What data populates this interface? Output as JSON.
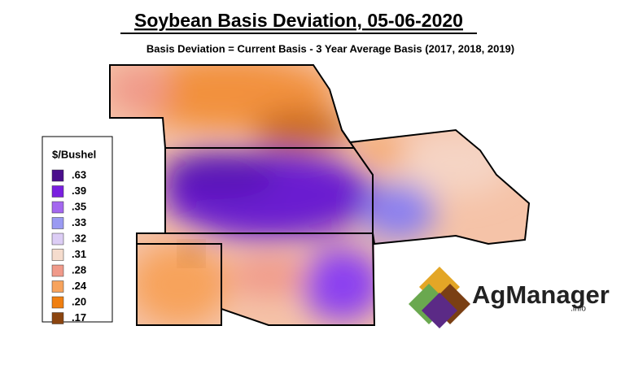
{
  "header": {
    "title": "Soybean Basis Deviation, 05-06-2020",
    "subtitle": "Basis Deviation = Current Basis - 3 Year Average Basis (2017, 2018, 2019)"
  },
  "legend": {
    "title": "$/Bushel",
    "items": [
      {
        "label": ".63",
        "color": "#4b0f8c"
      },
      {
        "label": ".39",
        "color": "#7a1fe0"
      },
      {
        "label": ".35",
        "color": "#a467ef"
      },
      {
        "label": ".33",
        "color": "#9a9af2"
      },
      {
        "label": ".32",
        "color": "#dccdf5"
      },
      {
        "label": ".31",
        "color": "#f5dccd"
      },
      {
        "label": ".28",
        "color": "#f09a8a"
      },
      {
        "label": ".24",
        "color": "#f7a35c"
      },
      {
        "label": ".20",
        "color": "#f07f10"
      },
      {
        "label": ".17",
        "color": "#8b4510"
      }
    ]
  },
  "logo": {
    "name": "AgManager",
    "suffix": ".info"
  }
}
